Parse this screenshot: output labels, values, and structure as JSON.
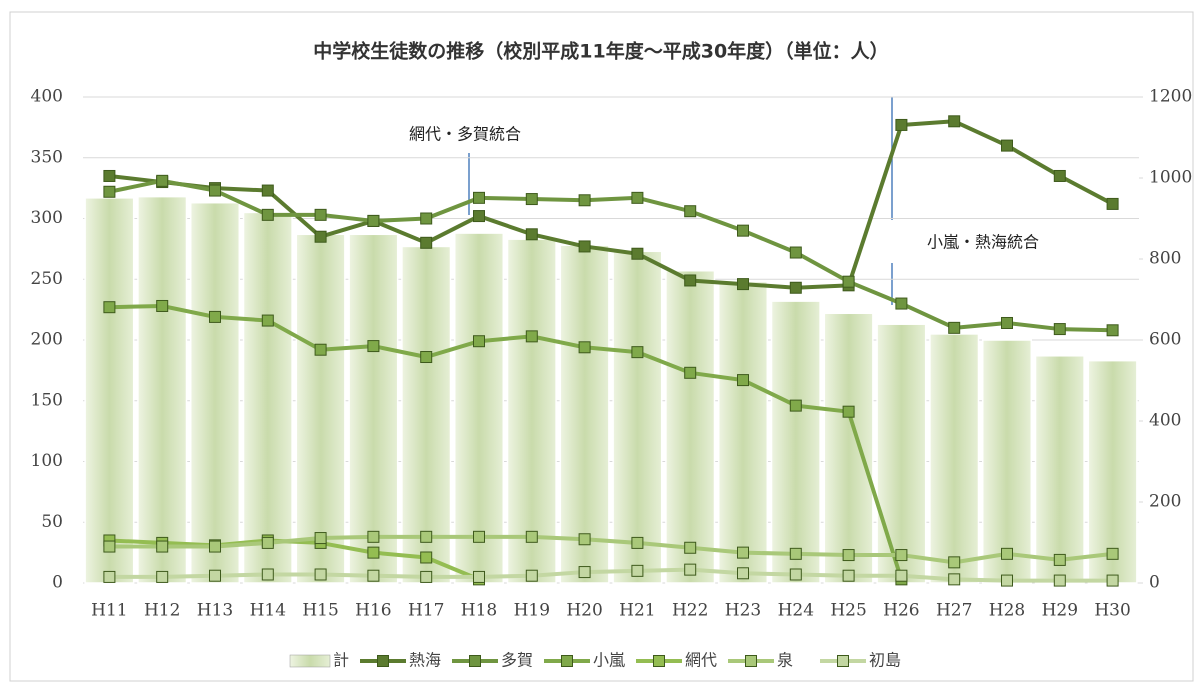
{
  "chart_data": {
    "type": "bar-line",
    "title": "中学校生徒数の推移（校別平成11年度～平成30年度）（単位：人）",
    "categories": [
      "H11",
      "H12",
      "H13",
      "H14",
      "H15",
      "H16",
      "H17",
      "H18",
      "H19",
      "H20",
      "H21",
      "H22",
      "H23",
      "H24",
      "H25",
      "H26",
      "H27",
      "H28",
      "H29",
      "H30"
    ],
    "ylim": [
      0,
      400
    ],
    "yticks": [
      0,
      50,
      100,
      150,
      200,
      250,
      300,
      350,
      400
    ],
    "y2lim": [
      0,
      1200
    ],
    "y2ticks": [
      0,
      200,
      400,
      600,
      800,
      1000,
      1200
    ],
    "grid": true,
    "legend": "bottom",
    "series": [
      {
        "name": "計",
        "type": "bar",
        "axis": "y2",
        "color": "#c9dbab",
        "values": [
          951,
          954,
          939,
          915,
          861,
          861,
          831,
          864,
          849,
          834,
          819,
          771,
          744,
          696,
          666,
          639,
          615,
          600,
          561,
          549
        ]
      },
      {
        "name": "熱海",
        "type": "line",
        "color": "#5b7b2f",
        "values": [
          335,
          330,
          325,
          323,
          285,
          298,
          280,
          302,
          287,
          277,
          271,
          249,
          246,
          243,
          245,
          377,
          380,
          360,
          335,
          312
        ]
      },
      {
        "name": "多賀",
        "type": "line",
        "color": "#6f9540",
        "values": [
          322,
          331,
          323,
          303,
          303,
          298,
          300,
          317,
          316,
          315,
          317,
          306,
          290,
          272,
          248,
          230,
          210,
          214,
          209,
          208
        ]
      },
      {
        "name": "小嵐",
        "type": "line",
        "color": "#80a94a",
        "values": [
          227,
          228,
          219,
          216,
          192,
          195,
          186,
          199,
          203,
          194,
          190,
          173,
          167,
          146,
          141,
          3,
          null,
          null,
          null,
          null
        ]
      },
      {
        "name": "網代",
        "type": "line",
        "color": "#94bd52",
        "values": [
          35,
          33,
          31,
          35,
          33,
          25,
          21,
          3,
          null,
          null,
          null,
          null,
          null,
          null,
          null,
          null,
          null,
          null,
          null,
          null
        ]
      },
      {
        "name": "泉",
        "type": "line",
        "color": "#a9c879",
        "values": [
          30,
          30,
          30,
          33,
          37,
          38,
          38,
          38,
          38,
          36,
          33,
          29,
          25,
          24,
          23,
          23,
          17,
          24,
          19,
          24
        ]
      },
      {
        "name": "初島",
        "type": "line",
        "color": "#c3d7a2",
        "values": [
          5,
          5,
          6,
          7,
          7,
          6,
          5,
          5,
          6,
          9,
          10,
          11,
          8,
          7,
          6,
          6,
          3,
          2,
          2,
          2
        ]
      }
    ],
    "annotations": [
      "網代・多賀統合",
      "小嵐・熱海統合"
    ]
  }
}
